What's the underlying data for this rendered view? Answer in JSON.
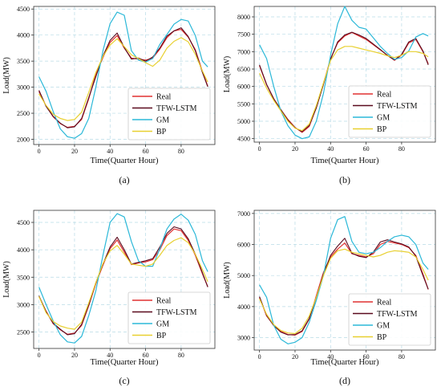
{
  "chart_data": [
    {
      "type": "line",
      "panel_label": "(a)",
      "xlabel": "Time(Quarter Hour)",
      "ylabel": "Load(MW)",
      "xlim": [
        -3,
        99
      ],
      "ylim": [
        1900,
        4550
      ],
      "xticks": [
        0,
        20,
        40,
        60,
        80
      ],
      "yticks": [
        2000,
        2500,
        3000,
        3500,
        4000,
        4500
      ],
      "grid": true,
      "legend_position": "bottom-right",
      "x": [
        0,
        4,
        8,
        12,
        16,
        20,
        24,
        28,
        32,
        36,
        40,
        44,
        48,
        52,
        56,
        60,
        64,
        68,
        72,
        76,
        80,
        84,
        88,
        92,
        95
      ],
      "series": [
        {
          "name": "Real",
          "color": "#e03030",
          "values": [
            2920,
            2640,
            2430,
            2300,
            2230,
            2250,
            2380,
            2780,
            3250,
            3570,
            3860,
            3990,
            3750,
            3560,
            3540,
            3520,
            3560,
            3730,
            3950,
            4080,
            4110,
            3960,
            3720,
            3300,
            3020
          ]
        },
        {
          "name": "TFW-LSTM",
          "color": "#5a0a1e",
          "values": [
            2940,
            2630,
            2440,
            2310,
            2220,
            2240,
            2400,
            2800,
            3200,
            3600,
            3900,
            4040,
            3760,
            3540,
            3560,
            3500,
            3580,
            3750,
            3980,
            4080,
            4140,
            3970,
            3700,
            3280,
            3010
          ]
        },
        {
          "name": "GM",
          "color": "#2bb8d8",
          "values": [
            3200,
            2920,
            2530,
            2200,
            2050,
            2020,
            2110,
            2400,
            3000,
            3700,
            4220,
            4440,
            4380,
            3700,
            3520,
            3480,
            3550,
            3820,
            4010,
            4210,
            4300,
            4270,
            3990,
            3500,
            3390
          ]
        },
        {
          "name": "BP",
          "color": "#e8d030",
          "values": [
            2870,
            2650,
            2480,
            2400,
            2360,
            2380,
            2520,
            2900,
            3280,
            3590,
            3810,
            3930,
            3780,
            3620,
            3550,
            3470,
            3400,
            3520,
            3750,
            3880,
            3950,
            3870,
            3630,
            3310,
            3100
          ]
        }
      ]
    },
    {
      "type": "line",
      "panel_label": "(b)",
      "xlabel": "Time(Quarter Hour)",
      "ylabel": "Load(MW)",
      "xlim": [
        -3,
        99
      ],
      "ylim": [
        4400,
        8300
      ],
      "xticks": [
        0,
        20,
        40,
        60,
        80
      ],
      "yticks": [
        4500,
        5000,
        5500,
        6000,
        6500,
        7000,
        7500,
        8000
      ],
      "grid": true,
      "legend_position": "bottom-right",
      "x": [
        0,
        4,
        8,
        12,
        16,
        20,
        24,
        28,
        32,
        36,
        40,
        44,
        48,
        52,
        56,
        60,
        64,
        68,
        72,
        76,
        80,
        84,
        88,
        92,
        95
      ],
      "series": [
        {
          "name": "Real",
          "color": "#e03030",
          "values": [
            6600,
            6050,
            5650,
            5330,
            5050,
            4820,
            4680,
            4850,
            5400,
            6080,
            6800,
            7250,
            7450,
            7550,
            7450,
            7350,
            7200,
            7050,
            6900,
            6750,
            6900,
            7250,
            7350,
            7000,
            6650
          ]
        },
        {
          "name": "TFW-LSTM",
          "color": "#5a0a1e",
          "values": [
            6620,
            6060,
            5640,
            5340,
            5030,
            4810,
            4700,
            4880,
            5380,
            6060,
            6780,
            7280,
            7480,
            7560,
            7480,
            7380,
            7220,
            7060,
            6890,
            6760,
            6920,
            7280,
            7380,
            7020,
            6620
          ]
        },
        {
          "name": "GM",
          "color": "#2bb8d8",
          "values": [
            7200,
            6800,
            6000,
            5300,
            4870,
            4600,
            4500,
            4550,
            5000,
            5800,
            6900,
            7800,
            8300,
            7900,
            7700,
            7650,
            7400,
            7150,
            6950,
            6780,
            6830,
            7020,
            7420,
            7520,
            7450
          ]
        },
        {
          "name": "BP",
          "color": "#e8d030",
          "values": [
            6380,
            5950,
            5600,
            5300,
            5000,
            4800,
            4730,
            4920,
            5450,
            6100,
            6750,
            7050,
            7150,
            7150,
            7100,
            7050,
            7000,
            6950,
            6880,
            6830,
            6900,
            7000,
            7000,
            6950,
            6850
          ]
        }
      ]
    },
    {
      "type": "line",
      "panel_label": "(c)",
      "xlabel": "Time(Quarter Hour)",
      "ylabel": "Load(MW)",
      "xlim": [
        -3,
        99
      ],
      "ylim": [
        2200,
        4720
      ],
      "xticks": [
        0,
        20,
        40,
        60,
        80
      ],
      "yticks": [
        2500,
        3000,
        3500,
        4000,
        4500
      ],
      "grid": true,
      "legend_position": "bottom-right",
      "x": [
        0,
        4,
        8,
        12,
        16,
        20,
        24,
        28,
        32,
        36,
        40,
        44,
        48,
        52,
        56,
        60,
        64,
        68,
        72,
        76,
        80,
        84,
        88,
        92,
        95
      ],
      "series": [
        {
          "name": "Real",
          "color": "#e03030",
          "values": [
            3150,
            2880,
            2650,
            2540,
            2460,
            2480,
            2620,
            2980,
            3380,
            3720,
            4020,
            4180,
            3960,
            3730,
            3760,
            3780,
            3820,
            4000,
            4260,
            4380,
            4350,
            4170,
            3900,
            3560,
            3330
          ]
        },
        {
          "name": "TFW-LSTM",
          "color": "#5a0a1e",
          "values": [
            3160,
            2870,
            2660,
            2550,
            2450,
            2470,
            2640,
            3000,
            3400,
            3740,
            4050,
            4230,
            4000,
            3740,
            3770,
            3800,
            3840,
            4050,
            4300,
            4420,
            4380,
            4200,
            3920,
            3580,
            3320
          ]
        },
        {
          "name": "GM",
          "color": "#2bb8d8",
          "values": [
            3320,
            3000,
            2700,
            2450,
            2320,
            2300,
            2420,
            2800,
            3250,
            3900,
            4500,
            4660,
            4600,
            4150,
            3800,
            3700,
            3700,
            4020,
            4380,
            4560,
            4650,
            4540,
            4280,
            3800,
            3600
          ]
        },
        {
          "name": "BP",
          "color": "#e8d030",
          "values": [
            3150,
            2850,
            2690,
            2610,
            2570,
            2550,
            2680,
            3030,
            3400,
            3750,
            3980,
            4080,
            3920,
            3740,
            3720,
            3700,
            3740,
            3900,
            4080,
            4170,
            4220,
            4130,
            3920,
            3640,
            3420
          ]
        }
      ]
    },
    {
      "type": "line",
      "panel_label": "(d)",
      "xlabel": "Time(Quarter Hour)",
      "ylabel": "Load(MW)",
      "xlim": [
        -3,
        99
      ],
      "ylim": [
        2600,
        7100
      ],
      "xticks": [
        0,
        20,
        40,
        60,
        80
      ],
      "yticks": [
        3000,
        4000,
        5000,
        6000,
        7000
      ],
      "grid": true,
      "legend_position": "bottom-right",
      "x": [
        0,
        4,
        8,
        12,
        16,
        20,
        24,
        28,
        32,
        36,
        40,
        44,
        48,
        52,
        56,
        60,
        64,
        68,
        72,
        76,
        80,
        84,
        88,
        92,
        95
      ],
      "series": [
        {
          "name": "Real",
          "color": "#e03030",
          "values": [
            4300,
            3700,
            3400,
            3200,
            3100,
            3080,
            3200,
            3600,
            4350,
            5100,
            5600,
            5850,
            6050,
            5700,
            5650,
            5600,
            5700,
            6000,
            6100,
            6050,
            6000,
            5900,
            5650,
            5050,
            4550
          ]
        },
        {
          "name": "TFW-LSTM",
          "color": "#5a0a1e",
          "values": [
            4320,
            3720,
            3390,
            3180,
            3090,
            3100,
            3220,
            3620,
            4300,
            5050,
            5650,
            5950,
            6200,
            5720,
            5620,
            5580,
            5750,
            6080,
            6150,
            6080,
            6020,
            5920,
            5620,
            5000,
            4560
          ]
        },
        {
          "name": "GM",
          "color": "#2bb8d8",
          "values": [
            4700,
            4300,
            3400,
            2950,
            2800,
            2850,
            3000,
            3500,
            4200,
            5000,
            6200,
            6800,
            6900,
            6100,
            5750,
            5700,
            5750,
            5900,
            6100,
            6250,
            6300,
            6250,
            6000,
            5400,
            5200
          ]
        },
        {
          "name": "BP",
          "color": "#e8d030",
          "values": [
            4250,
            3750,
            3420,
            3230,
            3150,
            3130,
            3300,
            3700,
            4300,
            5000,
            5550,
            5800,
            5850,
            5750,
            5700,
            5650,
            5600,
            5650,
            5750,
            5800,
            5780,
            5750,
            5600,
            5200,
            4850
          ]
        }
      ]
    }
  ]
}
